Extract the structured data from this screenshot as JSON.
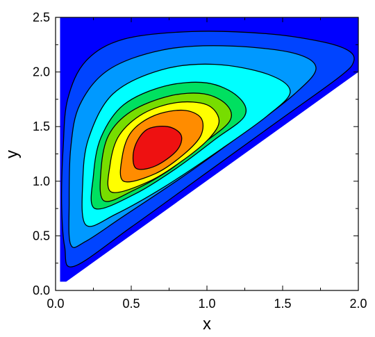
{
  "chart_data": {
    "type": "contour",
    "xlabel": "x",
    "ylabel": "y",
    "xlim": [
      0.0,
      2.0
    ],
    "ylim": [
      0.0,
      2.5
    ],
    "x_ticks": [
      0.0,
      0.5,
      1.0,
      1.5,
      2.0
    ],
    "x_tick_labels": [
      "0.0",
      "0.5",
      "1.0",
      "1.5",
      "2.0"
    ],
    "y_ticks": [
      0.0,
      0.5,
      1.0,
      1.5,
      2.0,
      2.5
    ],
    "y_tick_labels": [
      "0.0",
      "0.5",
      "1.0",
      "1.5",
      "2.0",
      "2.5"
    ],
    "domain_boundary": [
      [
        0.03,
        0.08
      ],
      [
        0.03,
        2.5
      ],
      [
        2.0,
        2.5
      ],
      [
        2.0,
        2.0
      ],
      [
        0.07,
        0.08
      ]
    ],
    "peak": {
      "x": 0.65,
      "y": 1.3
    },
    "levels": [
      {
        "color": "#0044ff",
        "points": [
          [
            0.06,
            0.4
          ],
          [
            0.04,
            0.8
          ],
          [
            0.05,
            1.3
          ],
          [
            0.08,
            1.75
          ],
          [
            0.2,
            2.1
          ],
          [
            0.45,
            2.3
          ],
          [
            0.9,
            2.37
          ],
          [
            1.4,
            2.35
          ],
          [
            1.75,
            2.28
          ],
          [
            1.93,
            2.2
          ],
          [
            1.97,
            2.1
          ],
          [
            1.88,
            1.96
          ],
          [
            1.5,
            1.58
          ],
          [
            1.0,
            1.08
          ],
          [
            0.5,
            0.58
          ],
          [
            0.12,
            0.22
          ]
        ]
      },
      {
        "color": "#0099ff",
        "points": [
          [
            0.1,
            0.42
          ],
          [
            0.09,
            0.8
          ],
          [
            0.1,
            1.3
          ],
          [
            0.16,
            1.7
          ],
          [
            0.35,
            2.02
          ],
          [
            0.7,
            2.2
          ],
          [
            1.1,
            2.24
          ],
          [
            1.55,
            2.18
          ],
          [
            1.72,
            2.04
          ],
          [
            1.58,
            1.8
          ],
          [
            1.25,
            1.45
          ],
          [
            0.85,
            1.05
          ],
          [
            0.45,
            0.68
          ],
          [
            0.2,
            0.45
          ]
        ]
      },
      {
        "color": "#00ffff",
        "points": [
          [
            0.2,
            0.6
          ],
          [
            0.18,
            1.0
          ],
          [
            0.22,
            1.4
          ],
          [
            0.38,
            1.8
          ],
          [
            0.7,
            2.02
          ],
          [
            1.05,
            2.07
          ],
          [
            1.4,
            1.98
          ],
          [
            1.55,
            1.82
          ],
          [
            1.4,
            1.6
          ],
          [
            1.1,
            1.3
          ],
          [
            0.72,
            0.95
          ],
          [
            0.4,
            0.7
          ]
        ]
      },
      {
        "color": "#00e060",
        "points": [
          [
            0.26,
            0.75
          ],
          [
            0.25,
            1.05
          ],
          [
            0.3,
            1.4
          ],
          [
            0.45,
            1.7
          ],
          [
            0.72,
            1.87
          ],
          [
            1.0,
            1.9
          ],
          [
            1.2,
            1.78
          ],
          [
            1.25,
            1.6
          ],
          [
            1.05,
            1.38
          ],
          [
            0.8,
            1.12
          ],
          [
            0.52,
            0.88
          ]
        ]
      },
      {
        "color": "#77dd00",
        "points": [
          [
            0.32,
            0.82
          ],
          [
            0.3,
            1.1
          ],
          [
            0.35,
            1.42
          ],
          [
            0.5,
            1.64
          ],
          [
            0.75,
            1.78
          ],
          [
            0.98,
            1.8
          ],
          [
            1.13,
            1.7
          ],
          [
            1.15,
            1.55
          ],
          [
            0.98,
            1.35
          ],
          [
            0.75,
            1.1
          ],
          [
            0.52,
            0.92
          ]
        ]
      },
      {
        "color": "#ffff00",
        "points": [
          [
            0.37,
            0.9
          ],
          [
            0.36,
            1.15
          ],
          [
            0.42,
            1.42
          ],
          [
            0.58,
            1.62
          ],
          [
            0.8,
            1.72
          ],
          [
            1.0,
            1.7
          ],
          [
            1.08,
            1.56
          ],
          [
            1.02,
            1.4
          ],
          [
            0.85,
            1.2
          ],
          [
            0.62,
            1.0
          ]
        ]
      },
      {
        "color": "#ff8c00",
        "points": [
          [
            0.45,
            1.0
          ],
          [
            0.44,
            1.22
          ],
          [
            0.5,
            1.45
          ],
          [
            0.65,
            1.6
          ],
          [
            0.84,
            1.65
          ],
          [
            0.96,
            1.58
          ],
          [
            0.96,
            1.42
          ],
          [
            0.85,
            1.25
          ],
          [
            0.66,
            1.07
          ]
        ]
      },
      {
        "color": "#ee1111",
        "points": [
          [
            0.53,
            1.12
          ],
          [
            0.52,
            1.3
          ],
          [
            0.6,
            1.47
          ],
          [
            0.74,
            1.5
          ],
          [
            0.83,
            1.42
          ],
          [
            0.8,
            1.28
          ],
          [
            0.66,
            1.14
          ]
        ]
      }
    ]
  }
}
